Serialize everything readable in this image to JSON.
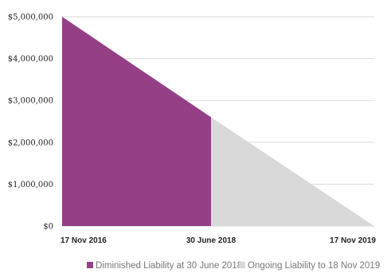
{
  "chart_data": {
    "type": "area",
    "x": [
      "17 Nov 2016",
      "30 June 2018",
      "17 Nov 2019"
    ],
    "y_ticks": [
      "$0",
      "$1,000,000",
      "$2,000,000",
      "$3,000,000",
      "$4,000,000",
      "$5,000,000"
    ],
    "ylim": [
      0,
      5000000
    ],
    "grid": true,
    "legend_position": "bottom",
    "series": [
      {
        "name": "Diminished Liability at 30 June 2018",
        "color": "#943f86",
        "points": [
          {
            "x": "17 Nov 2016",
            "y": 5000000
          },
          {
            "x": "30 June 2018",
            "y": 2600000
          }
        ]
      },
      {
        "name": "Ongoing Liability to 18 Nov 2019",
        "color": "#d9d9d9",
        "points": [
          {
            "x": "30 June 2018",
            "y": 2600000
          },
          {
            "x": "17 Nov 2019",
            "y": 0
          }
        ]
      }
    ]
  }
}
